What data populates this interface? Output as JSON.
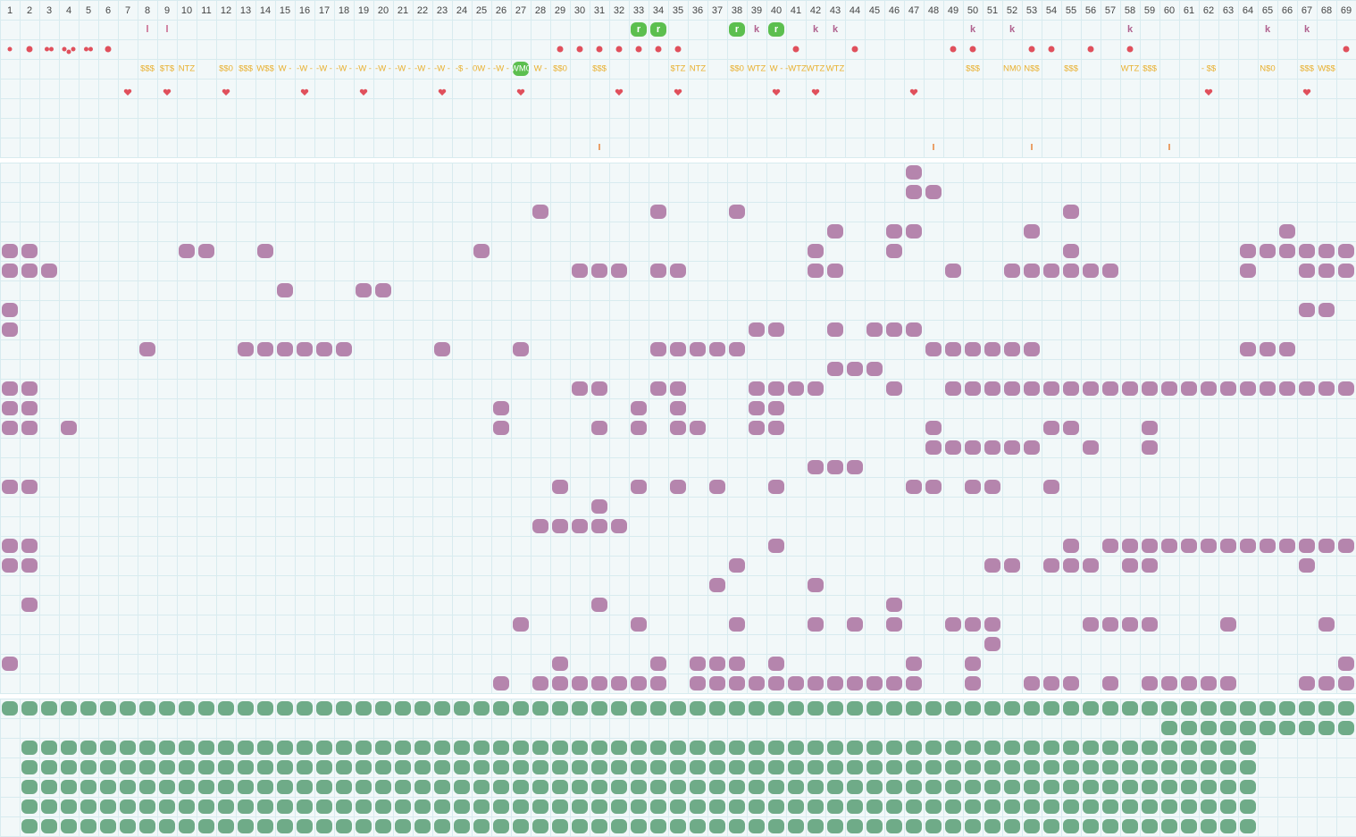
{
  "header": {
    "columns": [
      1,
      2,
      3,
      4,
      5,
      6,
      7,
      8,
      9,
      10,
      11,
      12,
      13,
      14,
      15,
      16,
      17,
      18,
      19,
      20,
      21,
      22,
      23,
      24,
      25,
      26,
      27,
      28,
      29,
      30,
      31,
      32,
      33,
      34,
      35,
      36,
      37,
      38,
      39,
      40,
      41,
      42,
      43,
      44,
      45,
      46,
      47,
      48,
      49,
      50,
      51,
      52,
      53,
      54,
      55,
      56,
      57,
      58,
      59,
      60,
      61,
      62,
      63,
      64,
      65,
      66,
      67,
      68,
      69
    ]
  },
  "lanes": {
    "letters": [
      null,
      null,
      null,
      null,
      null,
      null,
      null,
      "l",
      "l",
      null,
      null,
      null,
      null,
      null,
      null,
      null,
      null,
      null,
      null,
      null,
      null,
      null,
      null,
      null,
      null,
      null,
      null,
      null,
      null,
      null,
      null,
      null,
      "r",
      "r",
      null,
      null,
      null,
      "r",
      "k",
      "r",
      null,
      "k",
      "k",
      null,
      null,
      null,
      null,
      null,
      null,
      "k",
      null,
      "k",
      null,
      null,
      null,
      null,
      null,
      "k",
      null,
      null,
      null,
      null,
      null,
      null,
      "k",
      null,
      "k",
      null,
      null
    ],
    "codes": [
      null,
      null,
      null,
      null,
      null,
      null,
      null,
      "$$$",
      "$T$",
      "NTZ",
      null,
      "$$0",
      "$$$",
      "W$$",
      "W -",
      "-W -",
      "-W -",
      "-W -",
      "-W -",
      "-W -",
      "-W -",
      "-W -",
      "-W -",
      "-$ -",
      "0W -",
      "-W -",
      "WM0",
      "W -",
      "$$0",
      null,
      "$$$",
      null,
      null,
      null,
      "$TZ",
      "NTZ",
      null,
      "$$0",
      "WTZ",
      "W -",
      "-WTZ",
      "WTZ",
      "WTZ",
      null,
      null,
      null,
      null,
      null,
      null,
      "$$$",
      null,
      "NM0",
      "N$$",
      null,
      "$$$",
      null,
      null,
      "WTZ",
      "$$$",
      null,
      null,
      "- $$",
      null,
      null,
      "N$0",
      null,
      "$$$",
      "W$$",
      null
    ]
  }
}
